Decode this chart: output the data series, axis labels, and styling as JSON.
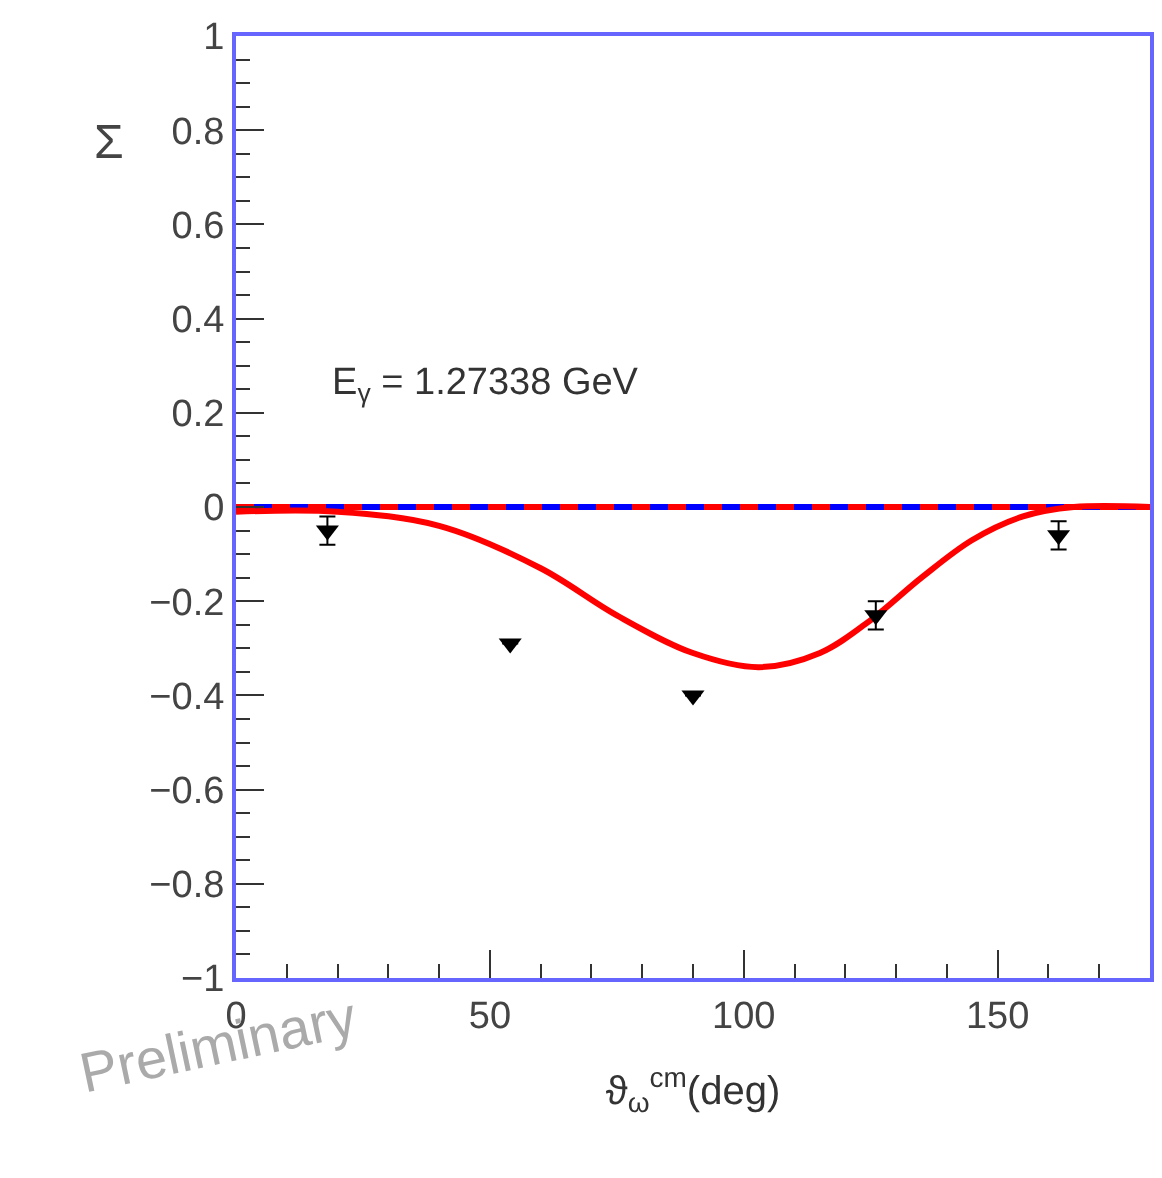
{
  "chart_data": {
    "type": "scatter",
    "xlabel": "ϑ$_{ω}$$^{cm}$(deg)",
    "ylabel": "Σ",
    "xlim": [
      0,
      180
    ],
    "ylim": [
      -1,
      1
    ],
    "xticks": [
      0,
      50,
      100,
      150
    ],
    "yticks": [
      {
        "value": -1,
        "label": "−1"
      },
      {
        "value": -0.8,
        "label": "−0.8"
      },
      {
        "value": -0.6,
        "label": "−0.6"
      },
      {
        "value": -0.4,
        "label": "−0.4"
      },
      {
        "value": -0.2,
        "label": "−0.2"
      },
      0,
      0.2,
      0.4,
      0.6,
      0.8,
      1
    ],
    "grid": false,
    "legend": false,
    "series": [
      {
        "type": "line",
        "color": "#ff0000",
        "line_style": "solid",
        "x": [
          0,
          20,
          40,
          60,
          75,
          90,
          103,
          115,
          125,
          135,
          145,
          155,
          165,
          180
        ],
        "values": [
          -0.01,
          -0.01,
          -0.04,
          -0.13,
          -0.23,
          -0.31,
          -0.34,
          -0.31,
          -0.24,
          -0.15,
          -0.07,
          -0.02,
          0,
          0
        ]
      },
      {
        "color": "#000000",
        "marker": "triangle",
        "x": [
          18,
          54,
          90,
          126,
          162
        ],
        "values": [
          -0.05,
          -0.29,
          -0.4,
          -0.23,
          -0.06
        ],
        "errors": [
          0.03,
          null,
          null,
          0.03,
          0.03
        ]
      }
    ],
    "ref_lines": [
      {
        "axis": "y",
        "value": 0,
        "color": "#0000ff",
        "line_style": "solid"
      },
      {
        "axis": "y",
        "value": 0,
        "color": "#ff0000",
        "line_style": "dashed"
      }
    ],
    "annotations": [
      "E$_{γ}$ = 1.27338 GeV",
      "Preliminary"
    ]
  }
}
